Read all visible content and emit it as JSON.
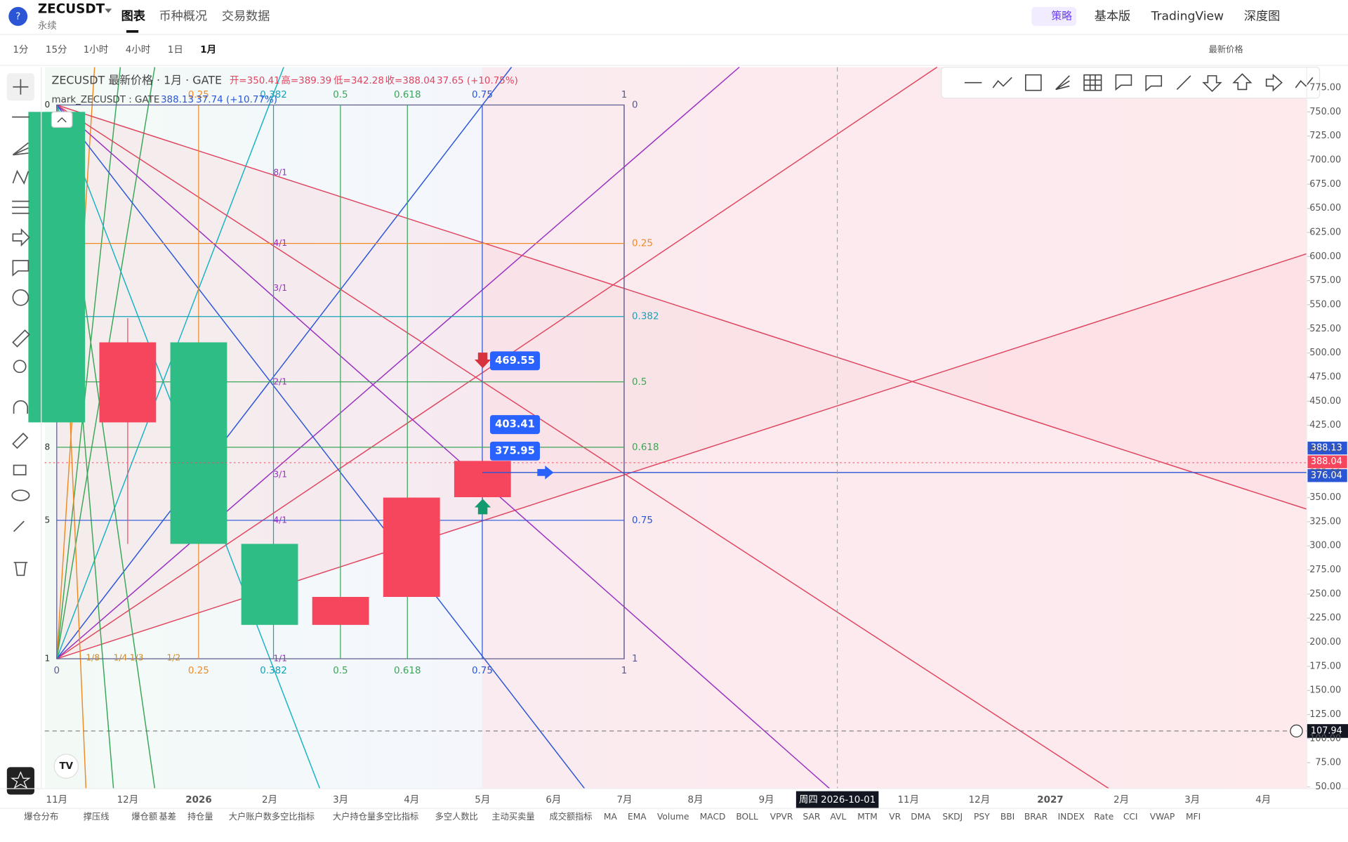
{
  "header": {
    "symbol": "ZECUSDT",
    "contract": "永续",
    "tabs": [
      "图表",
      "币种概况",
      "交易数据"
    ],
    "strategy": "策略",
    "views": [
      "基本版",
      "TradingView",
      "深度图"
    ]
  },
  "toolbar": {
    "intervals": [
      "1分",
      "15分",
      "1小时",
      "4小时",
      "1日",
      "1月"
    ],
    "price_type": "最新价格"
  },
  "legend": {
    "title": "ZECUSDT 最新价格 · 1月 · GATE",
    "open": "开=350.41",
    "high": "高=389.39",
    "low": "低=342.28",
    "close": "收=388.04",
    "change": "37.65 (+10.75%)",
    "mark_title": "mark_ZECUSDT : GATE",
    "mark_price": "388.13",
    "mark_change": "37.74 (+10.77%)"
  },
  "chart_data": {
    "type": "candlestick",
    "categories": [
      "11月",
      "12月",
      "2026",
      "2月",
      "3月",
      "4月",
      "5月",
      "6月",
      "7月",
      "8月",
      "9月",
      null,
      "11月",
      "12月",
      "2027",
      "2月",
      "3月",
      "4月"
    ],
    "open": [
      750,
      428,
      511,
      302,
      218,
      247,
      350.41,
      null,
      null,
      null,
      null,
      null,
      null,
      null,
      null,
      null,
      null,
      null
    ],
    "high": [
      750,
      536,
      511,
      302,
      247,
      350,
      389.39,
      null,
      null,
      null,
      null,
      null,
      null,
      null,
      null,
      null,
      null,
      null
    ],
    "low": [
      428,
      302,
      302,
      218,
      218,
      247,
      342.28,
      null,
      null,
      null,
      null,
      null,
      null,
      null,
      null,
      null,
      null,
      null
    ],
    "close": [
      428,
      511,
      302,
      218,
      247,
      350,
      388.04,
      null,
      null,
      null,
      null,
      null,
      null,
      null,
      null,
      null,
      null,
      null
    ],
    "up_color": "#f6465d",
    "down_color": "#2ebd85",
    "ylim": [
      48.2,
      796.4
    ],
    "yticks": [
      {
        "value": 50,
        "label": "50.00"
      },
      {
        "value": 75,
        "label": "75.00"
      },
      {
        "value": 100,
        "label": "100.00"
      },
      {
        "value": 125,
        "label": "125.00"
      },
      {
        "value": 150,
        "label": "150.00"
      },
      {
        "value": 175,
        "label": "175.00"
      },
      {
        "value": 200,
        "label": "200.00"
      },
      {
        "value": 225,
        "label": "225.00"
      },
      {
        "value": 250,
        "label": "250.00"
      },
      {
        "value": 275,
        "label": "275.00"
      },
      {
        "value": 300,
        "label": "300.00"
      },
      {
        "value": 325,
        "label": "325.00"
      },
      {
        "value": 350,
        "label": "350.00"
      },
      {
        "value": 375,
        "label": "375.00"
      },
      {
        "value": 400,
        "label": "400.00"
      },
      {
        "value": 425,
        "label": "425.00"
      },
      {
        "value": 450,
        "label": "450.00"
      },
      {
        "value": 475,
        "label": "475.00"
      },
      {
        "value": 500,
        "label": "500.00"
      },
      {
        "value": 525,
        "label": "525.00"
      },
      {
        "value": 550,
        "label": "550.00"
      },
      {
        "value": 575,
        "label": "575.00"
      },
      {
        "value": 600,
        "label": "600.00"
      },
      {
        "value": 625,
        "label": "625.00"
      },
      {
        "value": 650,
        "label": "650.00"
      },
      {
        "value": 675,
        "label": "675.00"
      },
      {
        "value": 700,
        "label": "700.00"
      },
      {
        "value": 725,
        "label": "725.00"
      },
      {
        "value": 750,
        "label": "750.00"
      },
      {
        "value": 775,
        "label": "775.00"
      }
    ],
    "price_badges": [
      388.13,
      388.04,
      376.04
    ],
    "price_line": 376.04,
    "crosshair_price": 107.94,
    "crosshair_time": "周四 2026-10-01",
    "annotations": [
      469.55,
      403.41,
      375.95
    ]
  },
  "gann": {
    "ratios": [
      "0.25",
      "0.382",
      "0.5",
      "0.618",
      "0.75",
      "1"
    ],
    "right_ratios": [
      "0",
      "0.25",
      "0.382",
      "0.5",
      "0.618",
      "0.75",
      "1"
    ],
    "bottom_ratios": [
      "0",
      "0.25",
      "0.382",
      "0.5",
      "0.618",
      "0.75",
      "1"
    ],
    "fan_labels": [
      "8/1",
      "4/1",
      "3/1",
      "2/1",
      "3/1",
      "4/1",
      "1/1"
    ],
    "bottom_fan": [
      "1/8",
      "1/4",
      "1/3",
      "1/2"
    ],
    "left_labels": [
      "0",
      "8",
      "5",
      "1"
    ]
  },
  "indicators": [
    "爆仓分布",
    "撑压线",
    "爆仓额",
    "基差",
    "持仓量",
    "大户账户数多空比指标",
    "大户持仓量多空比指标",
    "多空人数比",
    "主动买卖量",
    "成交额指标",
    "MA",
    "EMA",
    "Volume",
    "MACD",
    "BOLL",
    "VPVR",
    "SAR",
    "AVL",
    "MTM",
    "VR",
    "DMA",
    "SKDJ",
    "PSY",
    "BBI",
    "BRAR",
    "INDEX",
    "Rate",
    "CCI",
    "VWAP",
    "MFI"
  ]
}
